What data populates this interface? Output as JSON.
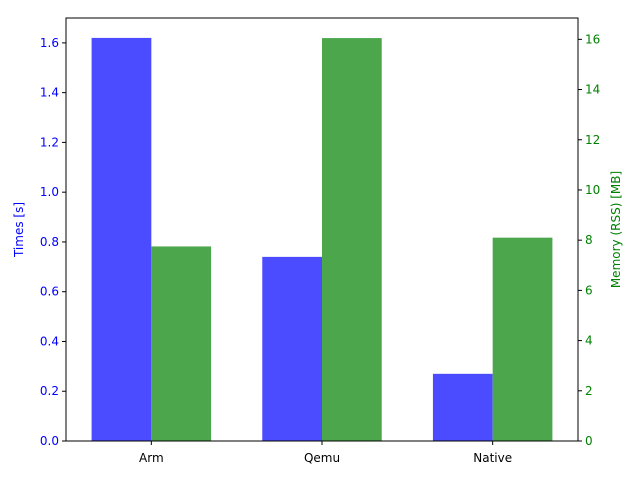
{
  "chart_data": {
    "type": "bar",
    "categories": [
      "Arm",
      "Qemu",
      "Native"
    ],
    "series": [
      {
        "values": [
          1.62,
          0.74,
          0.27
        ],
        "axis": "left",
        "color": "#4b4bff"
      },
      {
        "values": [
          7.75,
          16.05,
          8.1
        ],
        "axis": "right",
        "color": "#4ca64c"
      }
    ],
    "left_axis": {
      "label": "Times [s]",
      "color": "#0000ff",
      "ylim": [
        0,
        1.7
      ],
      "ticks": [
        0.0,
        0.2,
        0.4,
        0.6,
        0.8,
        1.0,
        1.2,
        1.4,
        1.6
      ],
      "tick_labels": [
        "0.0",
        "0.2",
        "0.4",
        "0.6",
        "0.8",
        "1.0",
        "1.2",
        "1.4",
        "1.6"
      ]
    },
    "right_axis": {
      "label": "Memory (RSS) [MB]",
      "color": "#008000",
      "ylim": [
        0,
        16.85
      ],
      "ticks": [
        0,
        2,
        4,
        6,
        8,
        10,
        12,
        14,
        16
      ],
      "tick_labels": [
        "0",
        "2",
        "4",
        "6",
        "8",
        "10",
        "12",
        "14",
        "16"
      ]
    },
    "grid": false,
    "legend": "none"
  }
}
